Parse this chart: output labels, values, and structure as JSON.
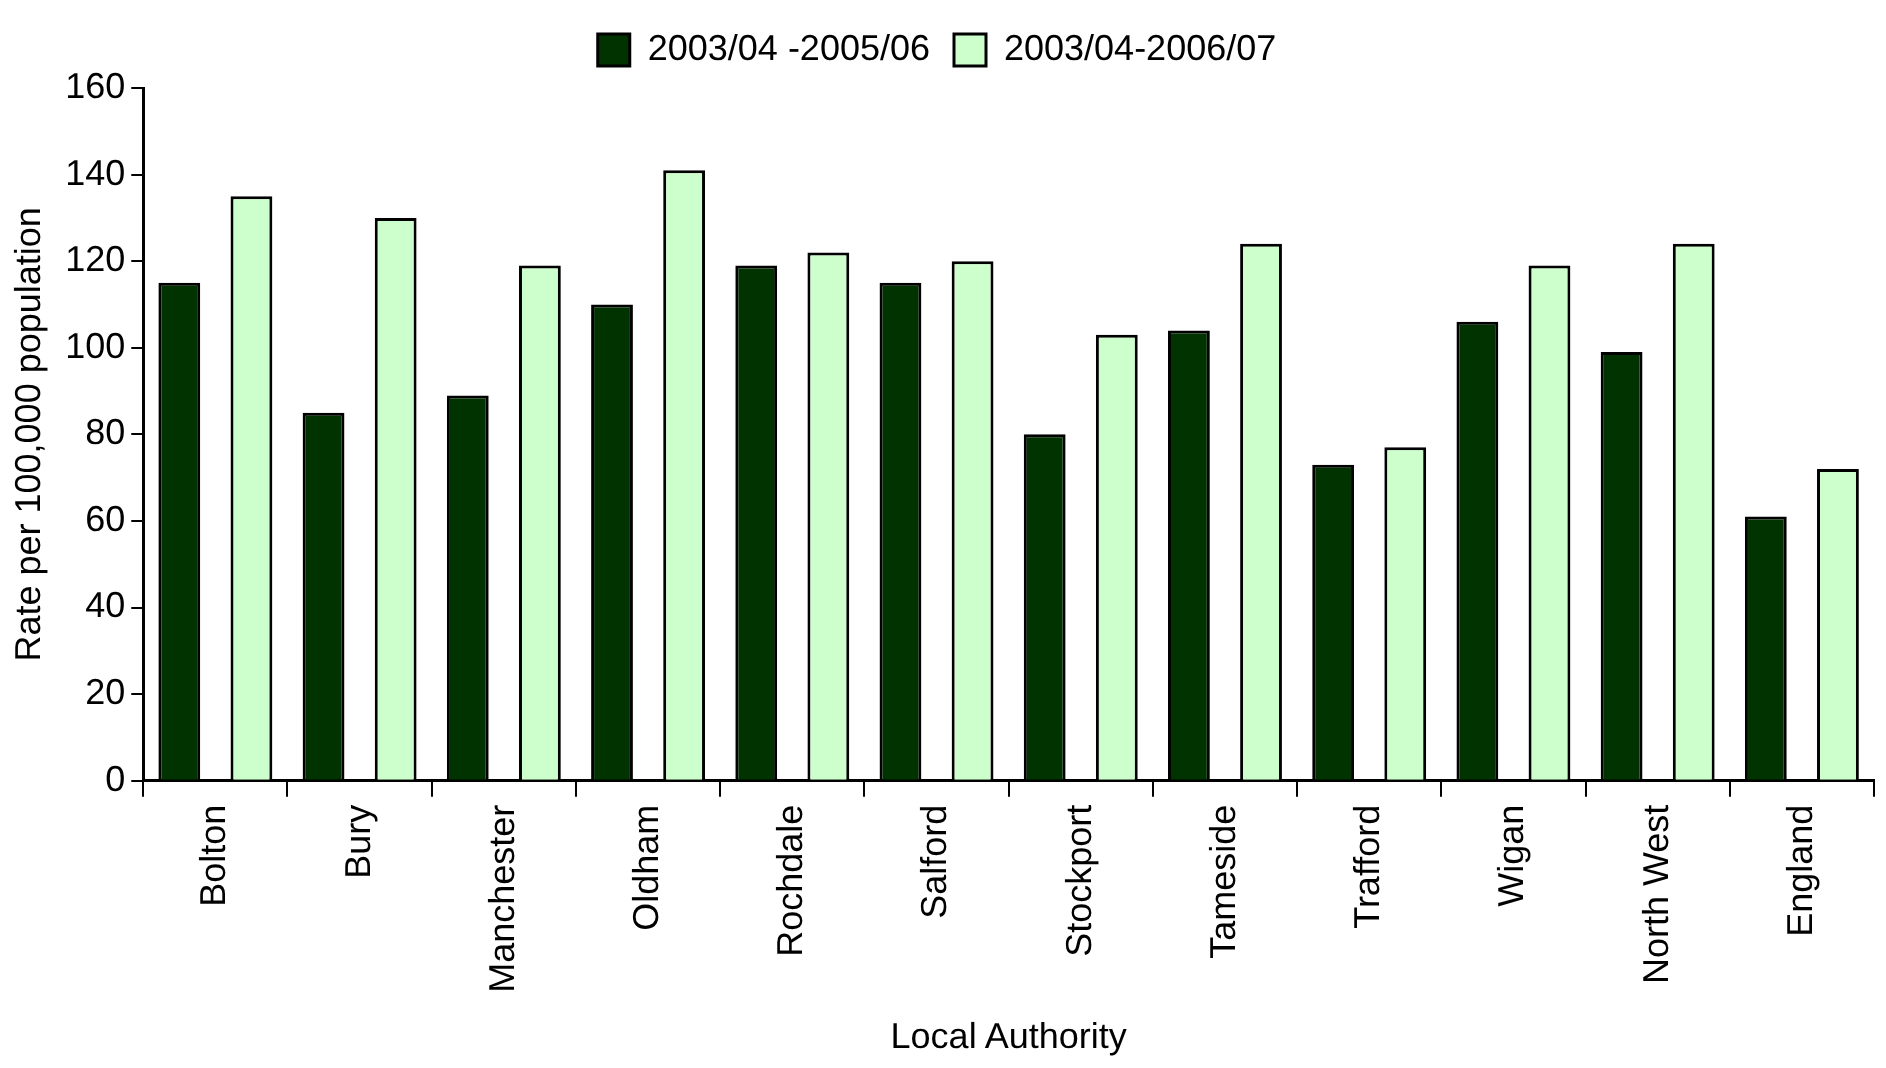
{
  "chart_data": {
    "type": "bar",
    "xlabel": "Local Authority",
    "ylabel": "Rate per 100,000 population",
    "categories": [
      "Bolton",
      "Bury",
      "Manchester",
      "Oldham",
      "Rochdale",
      "Salford",
      "Stockport",
      "Tameside",
      "Trafford",
      "Wigan",
      "North West",
      "England"
    ],
    "series": [
      {
        "name": "2003/04 -2005/06",
        "color": "#003300",
        "values": [
          115,
          85,
          89,
          110,
          119,
          115,
          80,
          104,
          73,
          106,
          99,
          61
        ]
      },
      {
        "name": "2003/04-2006/07",
        "color": "#ccffcc",
        "values": [
          135,
          130,
          119,
          141,
          122,
          120,
          103,
          124,
          77,
          119,
          124,
          72
        ]
      }
    ],
    "ylim": [
      0,
      160
    ],
    "yticks": [
      0,
      20,
      40,
      60,
      80,
      100,
      120,
      140,
      160
    ],
    "grid": false,
    "legend": "top"
  }
}
